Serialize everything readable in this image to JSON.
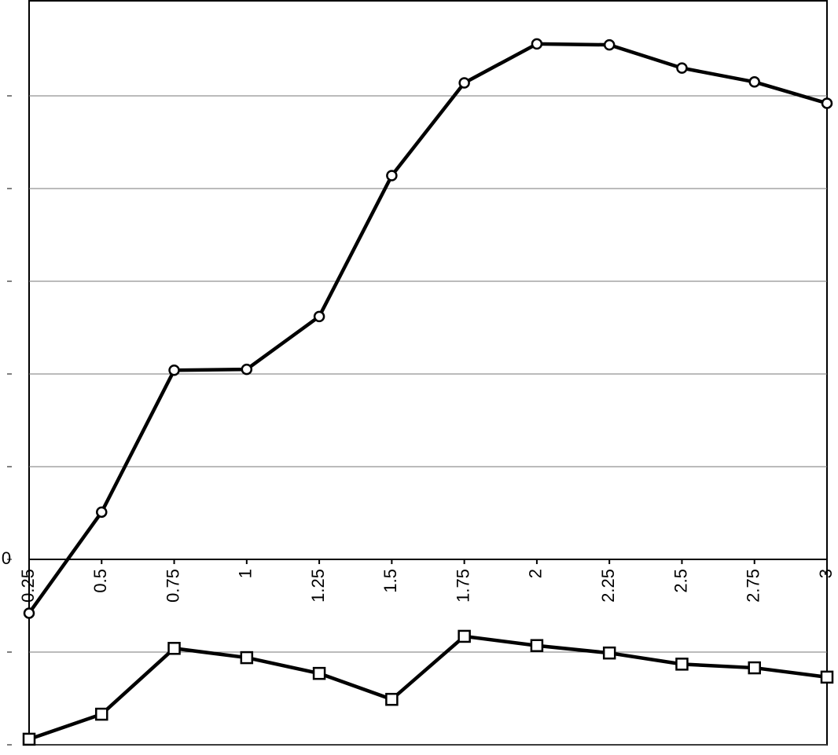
{
  "chart_data": {
    "type": "line",
    "x": [
      0.25,
      0.5,
      0.75,
      1,
      1.25,
      1.5,
      1.75,
      2,
      2.25,
      2.5,
      2.75,
      3
    ],
    "series": [
      {
        "color": "#000000",
        "marker": "circle",
        "values": [
          -0.58,
          0.51,
          2.04,
          2.05,
          2.62,
          4.14,
          5.14,
          5.56,
          5.55,
          5.3,
          5.15,
          4.92
        ]
      },
      {
        "color": "#000000",
        "marker": "square",
        "values": [
          -1.94,
          -1.67,
          -0.96,
          -1.06,
          -1.23,
          -1.51,
          -0.83,
          -0.93,
          -1.01,
          -1.13,
          -1.17,
          -1.27
        ]
      }
    ],
    "xlim": [
      0.25,
      3
    ],
    "xticks": [
      0.25,
      0.5,
      0.75,
      1,
      1.25,
      1.5,
      1.75,
      2,
      2.25,
      2.5,
      2.75,
      3
    ],
    "ylim": [
      -2,
      6
    ],
    "yticks": [
      {
        "value": -2,
        "label": null
      },
      {
        "value": -1,
        "label": null
      },
      0,
      {
        "value": 1,
        "label": null
      },
      {
        "value": 2,
        "label": null
      },
      {
        "value": 3,
        "label": null
      },
      {
        "value": 4,
        "label": null
      },
      {
        "value": 5,
        "label": null
      }
    ],
    "grid": true
  }
}
